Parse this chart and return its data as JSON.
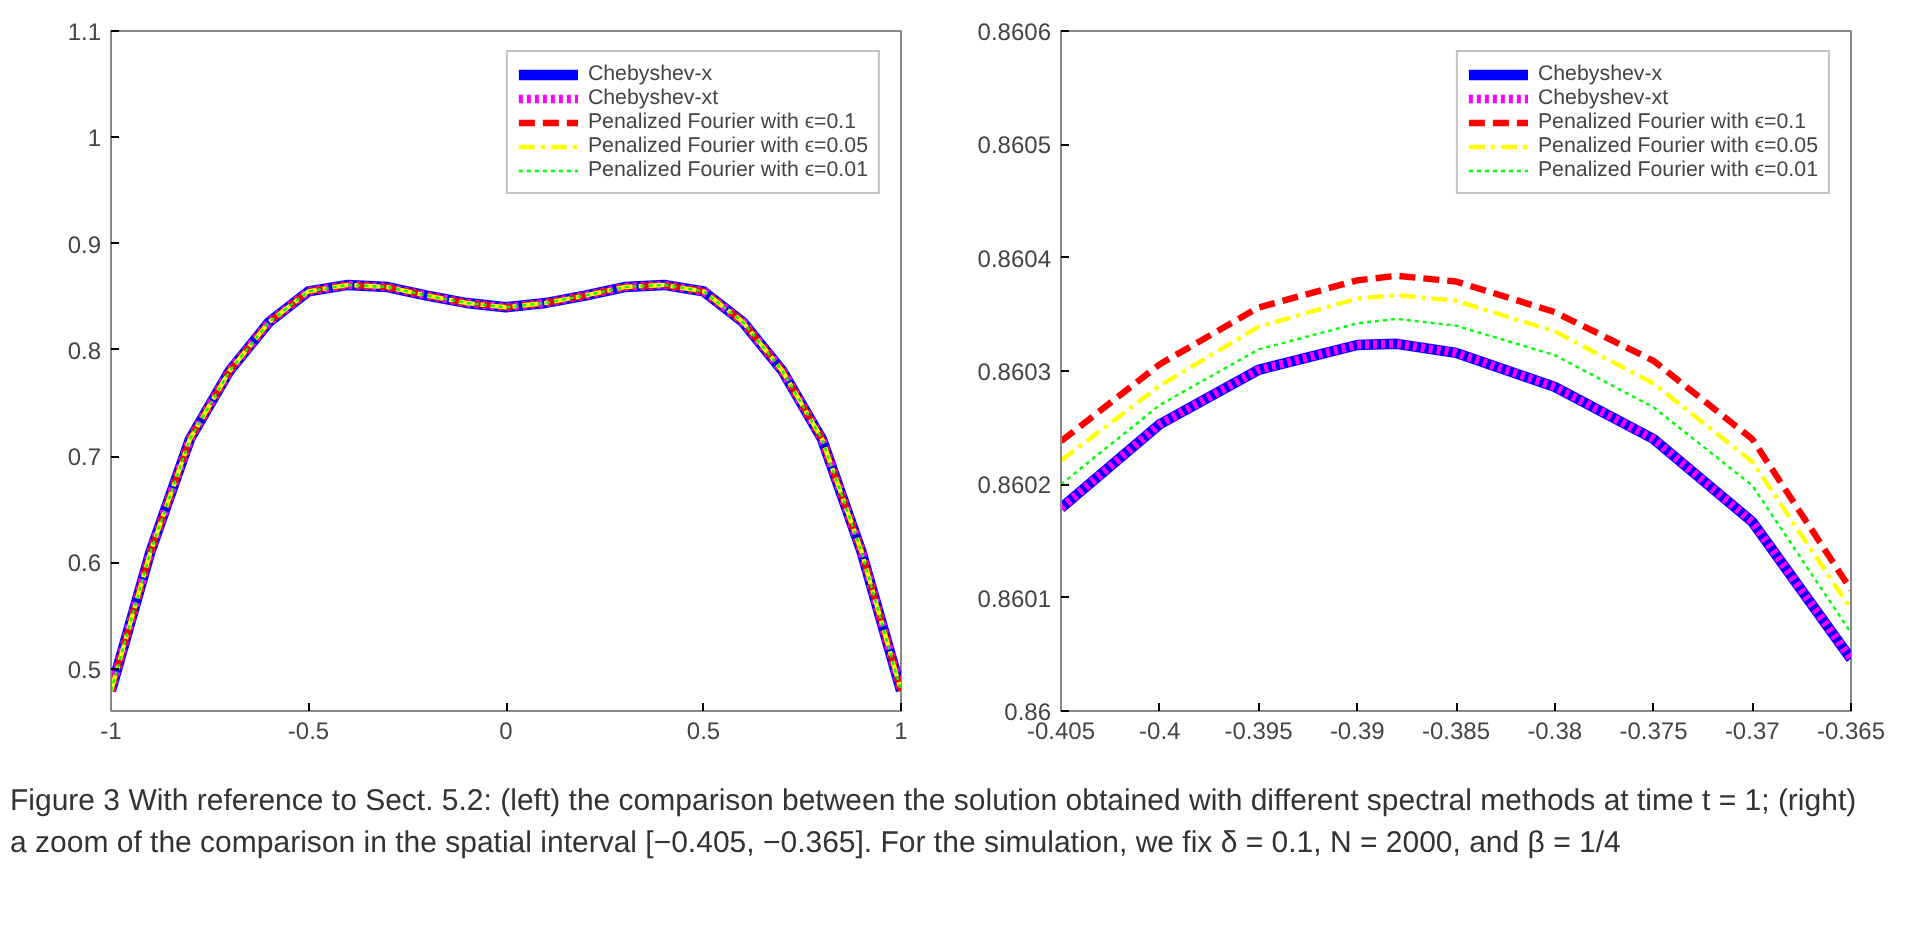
{
  "chart_data": [
    {
      "type": "line",
      "x": [
        -1,
        -0.9,
        -0.8,
        -0.7,
        -0.6,
        -0.5,
        -0.4,
        -0.3,
        -0.2,
        -0.1,
        0,
        0.1,
        0.2,
        0.3,
        0.4,
        0.5,
        0.6,
        0.7,
        0.8,
        0.9,
        1
      ],
      "series": [
        {
          "name": "Chebyshev-x",
          "color": "#0000ff",
          "line_style": "solid",
          "values": [
            0.479,
            0.61,
            0.716,
            0.78,
            0.826,
            0.855,
            0.861,
            0.859,
            0.851,
            0.844,
            0.84,
            0.844,
            0.851,
            0.859,
            0.861,
            0.855,
            0.826,
            0.78,
            0.716,
            0.61,
            0.479
          ]
        },
        {
          "name": "Chebyshev-xt",
          "color": "#ff00ff",
          "line_style": "dotted",
          "values": [
            0.479,
            0.61,
            0.716,
            0.78,
            0.826,
            0.855,
            0.861,
            0.859,
            0.851,
            0.844,
            0.84,
            0.844,
            0.851,
            0.859,
            0.861,
            0.855,
            0.826,
            0.78,
            0.716,
            0.61,
            0.479
          ]
        },
        {
          "name": "Penalized Fourier with ϵ=0.1",
          "color": "#ff0000",
          "line_style": "dashed",
          "values": [
            0.479,
            0.61,
            0.716,
            0.78,
            0.826,
            0.855,
            0.861,
            0.859,
            0.851,
            0.844,
            0.84,
            0.844,
            0.851,
            0.859,
            0.861,
            0.855,
            0.826,
            0.78,
            0.716,
            0.61,
            0.479
          ]
        },
        {
          "name": "Penalized Fourier with ϵ=0.05",
          "color": "#ffff00",
          "line_style": "dashdot",
          "values": [
            0.479,
            0.61,
            0.716,
            0.78,
            0.826,
            0.855,
            0.861,
            0.859,
            0.851,
            0.844,
            0.84,
            0.844,
            0.851,
            0.859,
            0.861,
            0.855,
            0.826,
            0.78,
            0.716,
            0.61,
            0.479
          ]
        },
        {
          "name": "Penalized Fourier with ϵ=0.01",
          "color": "#00ff00",
          "line_style": "dotted",
          "values": [
            0.479,
            0.61,
            0.716,
            0.78,
            0.826,
            0.855,
            0.861,
            0.859,
            0.851,
            0.844,
            0.84,
            0.844,
            0.851,
            0.859,
            0.861,
            0.855,
            0.826,
            0.78,
            0.716,
            0.61,
            0.479
          ]
        }
      ],
      "xlim": [
        -1,
        1
      ],
      "xticks": [
        -1,
        -0.5,
        0,
        0.5,
        1
      ],
      "ylim": [
        0.46,
        1.1
      ],
      "yticks": [
        0.5,
        0.6,
        0.7,
        0.8,
        0.9,
        1,
        1.1
      ],
      "grid": false,
      "legend": "top right",
      "annotations": [
        "Figure 3  With reference to Sect. 5.2: (left) the comparison between the solution obtained with different spectral methods at time t = 1; (right) a zoom of the comparison in the spatial interval [−0.405, −0.365]. For the simulation, we fix δ = 0.1, N = 2000, and β = 1/4"
      ]
    },
    {
      "type": "line",
      "x": [
        -0.405,
        -0.4,
        -0.395,
        -0.39,
        -0.388,
        -0.385,
        -0.38,
        -0.375,
        -0.37,
        -0.365
      ],
      "series": [
        {
          "name": "Chebyshev-x",
          "color": "#0000ff",
          "line_style": "solid",
          "values": [
            0.860179,
            0.860253,
            0.860301,
            0.860323,
            0.860324,
            0.860316,
            0.860286,
            0.86024,
            0.860167,
            0.860046
          ]
        },
        {
          "name": "Chebyshev-xt",
          "color": "#ff00ff",
          "line_style": "dotted",
          "values": [
            0.860179,
            0.860253,
            0.860301,
            0.860323,
            0.860324,
            0.860316,
            0.860286,
            0.86024,
            0.860167,
            0.860046
          ]
        },
        {
          "name": "Penalized Fourier with ϵ=0.1",
          "color": "#ff0000",
          "line_style": "dashed",
          "values": [
            0.860238,
            0.860306,
            0.860356,
            0.86038,
            0.860384,
            0.860379,
            0.860352,
            0.860309,
            0.86024,
            0.860107
          ]
        },
        {
          "name": "Penalized Fourier with ϵ=0.05",
          "color": "#ffff00",
          "line_style": "dashdot",
          "values": [
            0.860221,
            0.860287,
            0.860339,
            0.860364,
            0.860367,
            0.860362,
            0.860335,
            0.860289,
            0.86022,
            0.86009
          ]
        },
        {
          "name": "Penalized Fourier with ϵ=0.01",
          "color": "#00ff00",
          "line_style": "dotted",
          "values": [
            0.8602,
            0.86027,
            0.860319,
            0.860342,
            0.860346,
            0.86034,
            0.860314,
            0.860268,
            0.860199,
            0.860069
          ]
        }
      ],
      "xlim": [
        -0.405,
        -0.365
      ],
      "xticks": [
        -0.405,
        -0.4,
        -0.395,
        -0.39,
        -0.385,
        -0.38,
        -0.375,
        -0.37,
        -0.365
      ],
      "ylim": [
        0.86,
        0.8606
      ],
      "yticks": [
        0.86,
        0.8601,
        0.8602,
        0.8603,
        0.8604,
        0.8605,
        0.8606
      ],
      "grid": false,
      "legend": "top right"
    }
  ]
}
